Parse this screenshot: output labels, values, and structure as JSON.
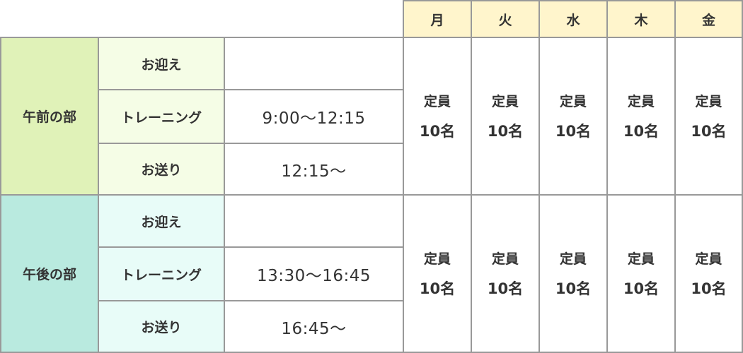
{
  "days": [
    "月",
    "火",
    "水",
    "木",
    "金"
  ],
  "sessions": [
    {
      "name": "午前の部",
      "rows": [
        {
          "label": "お迎え",
          "time": ""
        },
        {
          "label": "トレーニング",
          "time": "9:00〜12:15"
        },
        {
          "label": "お送り",
          "time": "12:15〜"
        }
      ],
      "capacity_label": "定員",
      "capacity": [
        "10名",
        "10名",
        "10名",
        "10名",
        "10名"
      ]
    },
    {
      "name": "午後の部",
      "rows": [
        {
          "label": "お迎え",
          "time": ""
        },
        {
          "label": "トレーニング",
          "time": "13:30〜16:45"
        },
        {
          "label": "お送り",
          "time": "16:45〜"
        }
      ],
      "capacity_label": "定員",
      "capacity": [
        "10名",
        "10名",
        "10名",
        "10名",
        "10名"
      ]
    }
  ],
  "colors": {
    "header": "#fff5cc",
    "morning": "#e0f2b8",
    "morning_sub": "#f5fde6",
    "afternoon": "#b9eadf",
    "afternoon_sub": "#e8fcf8",
    "border": "#999999"
  }
}
